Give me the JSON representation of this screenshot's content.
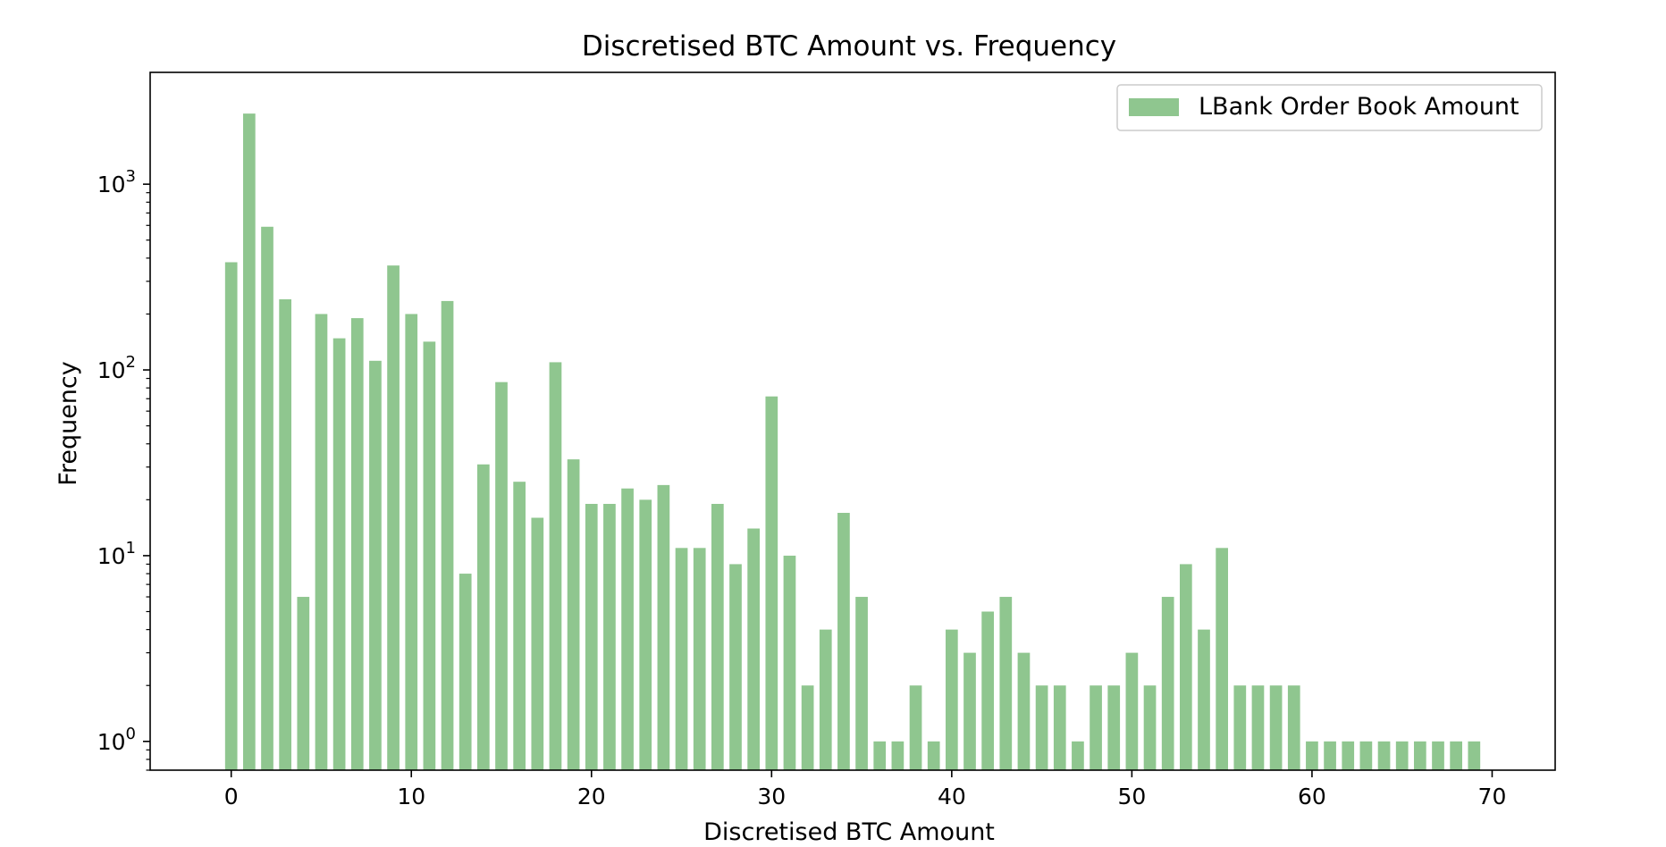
{
  "chart_data": {
    "type": "bar",
    "title": "Discretised BTC Amount vs. Frequency",
    "xlabel": "Discretised BTC Amount",
    "ylabel": "Frequency",
    "yscale": "log",
    "xlim": [
      -4.5,
      73.5
    ],
    "ylim": [
      0.7,
      4000
    ],
    "x_ticks": [
      0,
      10,
      20,
      30,
      40,
      50,
      60,
      70
    ],
    "y_ticks": [
      {
        "value": 1,
        "base": "10",
        "exp": "0"
      },
      {
        "value": 10,
        "base": "10",
        "exp": "1"
      },
      {
        "value": 100,
        "base": "10",
        "exp": "2"
      },
      {
        "value": 1000,
        "base": "10",
        "exp": "3"
      }
    ],
    "legend_position": "top-right",
    "color": "#8fc68f",
    "series": [
      {
        "name": "LBank Order Book Amount",
        "x": [
          0,
          1,
          2,
          3,
          4,
          5,
          6,
          7,
          8,
          9,
          10,
          11,
          12,
          13,
          14,
          15,
          16,
          17,
          18,
          19,
          20,
          21,
          22,
          23,
          24,
          25,
          26,
          27,
          28,
          29,
          30,
          31,
          32,
          33,
          34,
          35,
          36,
          37,
          38,
          39,
          40,
          41,
          42,
          43,
          44,
          45,
          46,
          47,
          48,
          49,
          50,
          51,
          52,
          53,
          54,
          55,
          56,
          57,
          58,
          59,
          60,
          61,
          62,
          63,
          64,
          65,
          66,
          67,
          68,
          69
        ],
        "values": [
          380,
          2400,
          590,
          240,
          6,
          200,
          148,
          190,
          112,
          365,
          200,
          142,
          235,
          8,
          31,
          86,
          25,
          16,
          110,
          33,
          19,
          19,
          23,
          20,
          24,
          11,
          11,
          19,
          9,
          14,
          72,
          10,
          2,
          4,
          17,
          6,
          1,
          1,
          2,
          1,
          4,
          3,
          5,
          6,
          3,
          2,
          2,
          1,
          2,
          2,
          3,
          2,
          6,
          9,
          4,
          11,
          2,
          2,
          2,
          2,
          1,
          1,
          1,
          1,
          1,
          1,
          1,
          1,
          1,
          1
        ]
      }
    ]
  }
}
